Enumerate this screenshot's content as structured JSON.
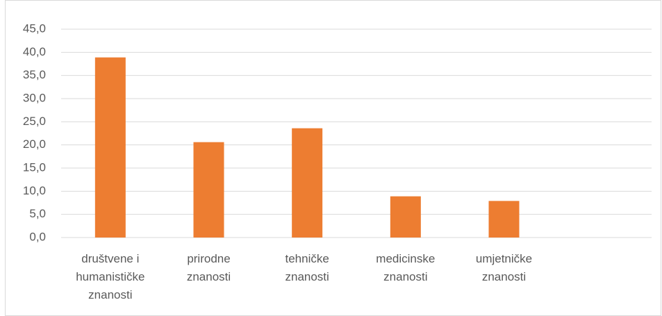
{
  "chart_data": {
    "type": "bar",
    "categories": [
      "društvene i humanističke znanosti",
      "prirodne znanosti",
      "tehničke znanosti",
      "medicinske znanosti",
      "umjetničke znanosti",
      null
    ],
    "values": [
      38.9,
      20.6,
      23.6,
      8.9,
      7.9,
      null
    ],
    "color": "#ed7d31",
    "ylim": [
      0,
      45
    ],
    "yticks": [
      {
        "value": 0,
        "label": "0,0"
      },
      {
        "value": 5,
        "label": "5,0"
      },
      {
        "value": 10,
        "label": "10,0"
      },
      {
        "value": 15,
        "label": "15,0"
      },
      {
        "value": 20,
        "label": "20,0"
      },
      {
        "value": 25,
        "label": "25,0"
      },
      {
        "value": 30,
        "label": "30,0"
      },
      {
        "value": 35,
        "label": "35,0"
      },
      {
        "value": 40,
        "label": "40,0"
      },
      {
        "value": 45,
        "label": "45,0"
      }
    ],
    "grid": true
  }
}
